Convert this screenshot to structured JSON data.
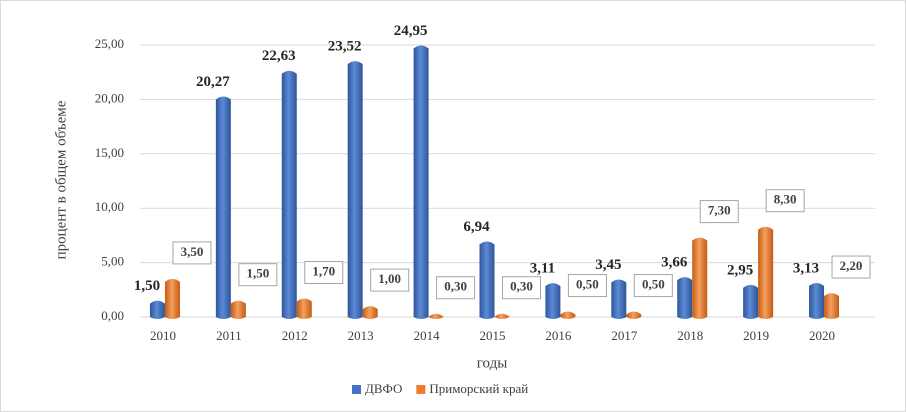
{
  "chart_data": {
    "type": "bar",
    "xlabel": "годы",
    "ylabel": "процент в общем объеме",
    "categories": [
      "2010",
      "2011",
      "2012",
      "2013",
      "2014",
      "2015",
      "2016",
      "2017",
      "2018",
      "2019",
      "2020"
    ],
    "series": [
      {
        "name": "ДВФО",
        "color": "#4472c4",
        "values": [
          1.5,
          20.27,
          22.63,
          23.52,
          24.95,
          6.94,
          3.11,
          3.45,
          3.66,
          2.95,
          3.13
        ],
        "value_labels": [
          "1,50",
          "20,27",
          "22,63",
          "23,52",
          "24,95",
          "6,94",
          "3,11",
          "3,45",
          "3,66",
          "2,95",
          "3,13"
        ]
      },
      {
        "name": "Приморский край",
        "color": "#ed7d31",
        "values": [
          3.5,
          1.5,
          1.7,
          1.0,
          0.3,
          0.3,
          0.5,
          0.5,
          7.3,
          8.3,
          2.2
        ],
        "value_labels": [
          "3,50",
          "1,50",
          "1,70",
          "1,00",
          "0,30",
          "0,30",
          "0,50",
          "0,50",
          "7,30",
          "8,30",
          "2,20"
        ]
      }
    ],
    "ylim": [
      0,
      25
    ],
    "yticks": [
      {
        "value": 0,
        "label": "0,00"
      },
      {
        "value": 5,
        "label": "5,00"
      },
      {
        "value": 10,
        "label": "10,00"
      },
      {
        "value": 15,
        "label": "15,00"
      },
      {
        "value": 20,
        "label": "20,00"
      },
      {
        "value": 25,
        "label": "25,00"
      }
    ],
    "grid": true,
    "legend": "bottom"
  }
}
